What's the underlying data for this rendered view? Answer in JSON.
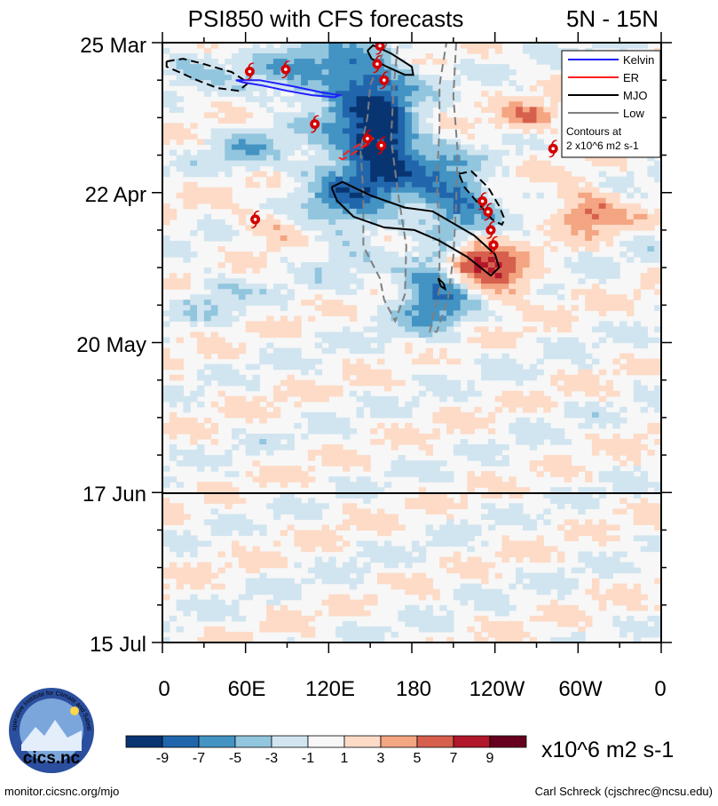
{
  "chart_data": {
    "type": "heatmap",
    "title": "PSI850 with CFS forecasts",
    "region": "5N - 15N",
    "y_ticks": [
      "25 Mar",
      "22 Apr",
      "20 May",
      "17 Jun",
      "15 Jul"
    ],
    "x_ticks": [
      "0",
      "60E",
      "120E",
      "180",
      "120W",
      "60W",
      "0"
    ],
    "forecast_start_label": "17 Jun",
    "colorbar": {
      "ticks": [
        "-9",
        "-7",
        "-5",
        "-3",
        "-1",
        "1",
        "3",
        "5",
        "7",
        "9"
      ],
      "colors": [
        "#083572",
        "#2166ac",
        "#4393c3",
        "#92c5de",
        "#d1e5f0",
        "#f7f7f7",
        "#fddbc7",
        "#f4a582",
        "#d6604d",
        "#b2182b",
        "#67001f"
      ],
      "units": "x10^6 m2 s-1"
    },
    "legend": {
      "entries": [
        {
          "name": "Kelvin",
          "color": "#1f1fff"
        },
        {
          "name": "ER",
          "color": "#ff2020"
        },
        {
          "name": "MJO",
          "color": "#000000"
        },
        {
          "name": "Low",
          "color": "#7f7f7f"
        }
      ],
      "note_line1": "Contours at",
      "note_line2": "2 x10^6 m2 s-1"
    },
    "storms": [
      {
        "lon": 157,
        "day": 0.6
      },
      {
        "lon": 63,
        "day": 5.4
      },
      {
        "lon": 89,
        "day": 5.0
      },
      {
        "lon": 155,
        "day": 4.0
      },
      {
        "lon": 160,
        "day": 7.0
      },
      {
        "lon": 110,
        "day": 15.2
      },
      {
        "lon": 148,
        "day": 17.9
      },
      {
        "lon": 158,
        "day": 19.2
      },
      {
        "lon": 67,
        "day": 33.0
      },
      {
        "lon": 231,
        "day": 29.6
      },
      {
        "lon": 235,
        "day": 31.6
      },
      {
        "lon": 237,
        "day": 35.0
      },
      {
        "lon": 239,
        "day": 37.8
      },
      {
        "lon": 282,
        "day": 19.8
      }
    ],
    "contours": [
      {
        "type": "Low",
        "style": "dashed",
        "points": [
          [
            162,
            0
          ],
          [
            150,
            8
          ],
          [
            148,
            14
          ],
          [
            143,
            20
          ],
          [
            145,
            28
          ],
          [
            145,
            38
          ],
          [
            157,
            44
          ],
          [
            160,
            48
          ],
          [
            168,
            52
          ],
          [
            175,
            47
          ],
          [
            176,
            38
          ],
          [
            170,
            28
          ],
          [
            165,
            18
          ],
          [
            167,
            8
          ],
          [
            170,
            0
          ]
        ]
      },
      {
        "type": "Low",
        "style": "dashed",
        "points": [
          [
            212,
            0
          ],
          [
            210,
            10
          ],
          [
            213,
            20
          ],
          [
            212,
            30
          ],
          [
            210,
            40
          ],
          [
            206,
            48
          ],
          [
            198,
            54
          ],
          [
            193,
            54
          ],
          [
            200,
            46
          ],
          [
            200,
            36
          ],
          [
            198,
            26
          ],
          [
            200,
            16
          ],
          [
            200,
            8
          ],
          [
            205,
            0
          ]
        ]
      },
      {
        "type": "MJO",
        "style": "solid",
        "points": [
          [
            148,
            1.5
          ],
          [
            152,
            0.5
          ],
          [
            165,
            2.0
          ],
          [
            180,
            4.5
          ],
          [
            181,
            6.0
          ],
          [
            175,
            6.0
          ],
          [
            162,
            4.5
          ],
          [
            151,
            3.0
          ],
          [
            148,
            1.5
          ]
        ]
      },
      {
        "type": "MJO",
        "style": "dashed",
        "points": [
          [
            3,
            3.5
          ],
          [
            15,
            3.0
          ],
          [
            30,
            4.0
          ],
          [
            50,
            5.5
          ],
          [
            62,
            7.5
          ],
          [
            55,
            9.0
          ],
          [
            40,
            8.5
          ],
          [
            25,
            7.0
          ],
          [
            12,
            5.5
          ],
          [
            3,
            4.5
          ],
          [
            3,
            3.5
          ]
        ]
      },
      {
        "type": "MJO",
        "style": "solid",
        "points": [
          [
            122,
            27.0
          ],
          [
            130,
            26.0
          ],
          [
            150,
            28.5
          ],
          [
            175,
            30.8
          ],
          [
            195,
            31.5
          ],
          [
            225,
            36.0
          ],
          [
            240,
            39.5
          ],
          [
            243,
            42.0
          ],
          [
            237,
            43.5
          ],
          [
            220,
            40.0
          ],
          [
            200,
            37.0
          ],
          [
            182,
            35.0
          ],
          [
            160,
            34.5
          ],
          [
            138,
            32.5
          ],
          [
            126,
            29.5
          ],
          [
            122,
            27.0
          ]
        ]
      },
      {
        "type": "MJO",
        "style": "dashed",
        "points": [
          [
            214,
            24.5
          ],
          [
            223,
            24.0
          ],
          [
            235,
            27.0
          ],
          [
            243,
            30.5
          ],
          [
            247,
            33.0
          ],
          [
            245,
            34.0
          ],
          [
            238,
            33.0
          ],
          [
            228,
            30.0
          ],
          [
            218,
            27.0
          ],
          [
            214,
            24.5
          ]
        ]
      },
      {
        "type": "MJO",
        "style": "solid",
        "points": [
          [
            199,
            44.0
          ],
          [
            203,
            45.0
          ],
          [
            204,
            46.0
          ],
          [
            201,
            45.5
          ],
          [
            199,
            44.0
          ]
        ]
      },
      {
        "type": "Kelvin",
        "style": "solid",
        "points": [
          [
            53,
            7.0
          ],
          [
            70,
            7.0
          ],
          [
            95,
            8.2
          ],
          [
            115,
            9.3
          ],
          [
            128,
            9.8
          ],
          [
            124,
            10.2
          ],
          [
            108,
            9.8
          ],
          [
            90,
            9.0
          ],
          [
            72,
            8.0
          ],
          [
            58,
            7.4
          ],
          [
            53,
            7.0
          ]
        ]
      },
      {
        "type": "ER",
        "style": "dashed",
        "points": [
          [
            150,
            17.5
          ],
          [
            142,
            19.0
          ],
          [
            133,
            20.5
          ],
          [
            128,
            21.5
          ],
          [
            130,
            21.8
          ],
          [
            137,
            20.8
          ],
          [
            145,
            19.4
          ],
          [
            152,
            17.9
          ],
          [
            150,
            17.5
          ]
        ]
      }
    ]
  },
  "footer": {
    "left": "monitor.cicsnc.org/mjo",
    "right": "Carl Schreck (cjschrec@ncsu.edu)"
  },
  "logo": {
    "text": "cics.nc",
    "ring_text": "Cooperative Institute for Climate and Satellites"
  }
}
